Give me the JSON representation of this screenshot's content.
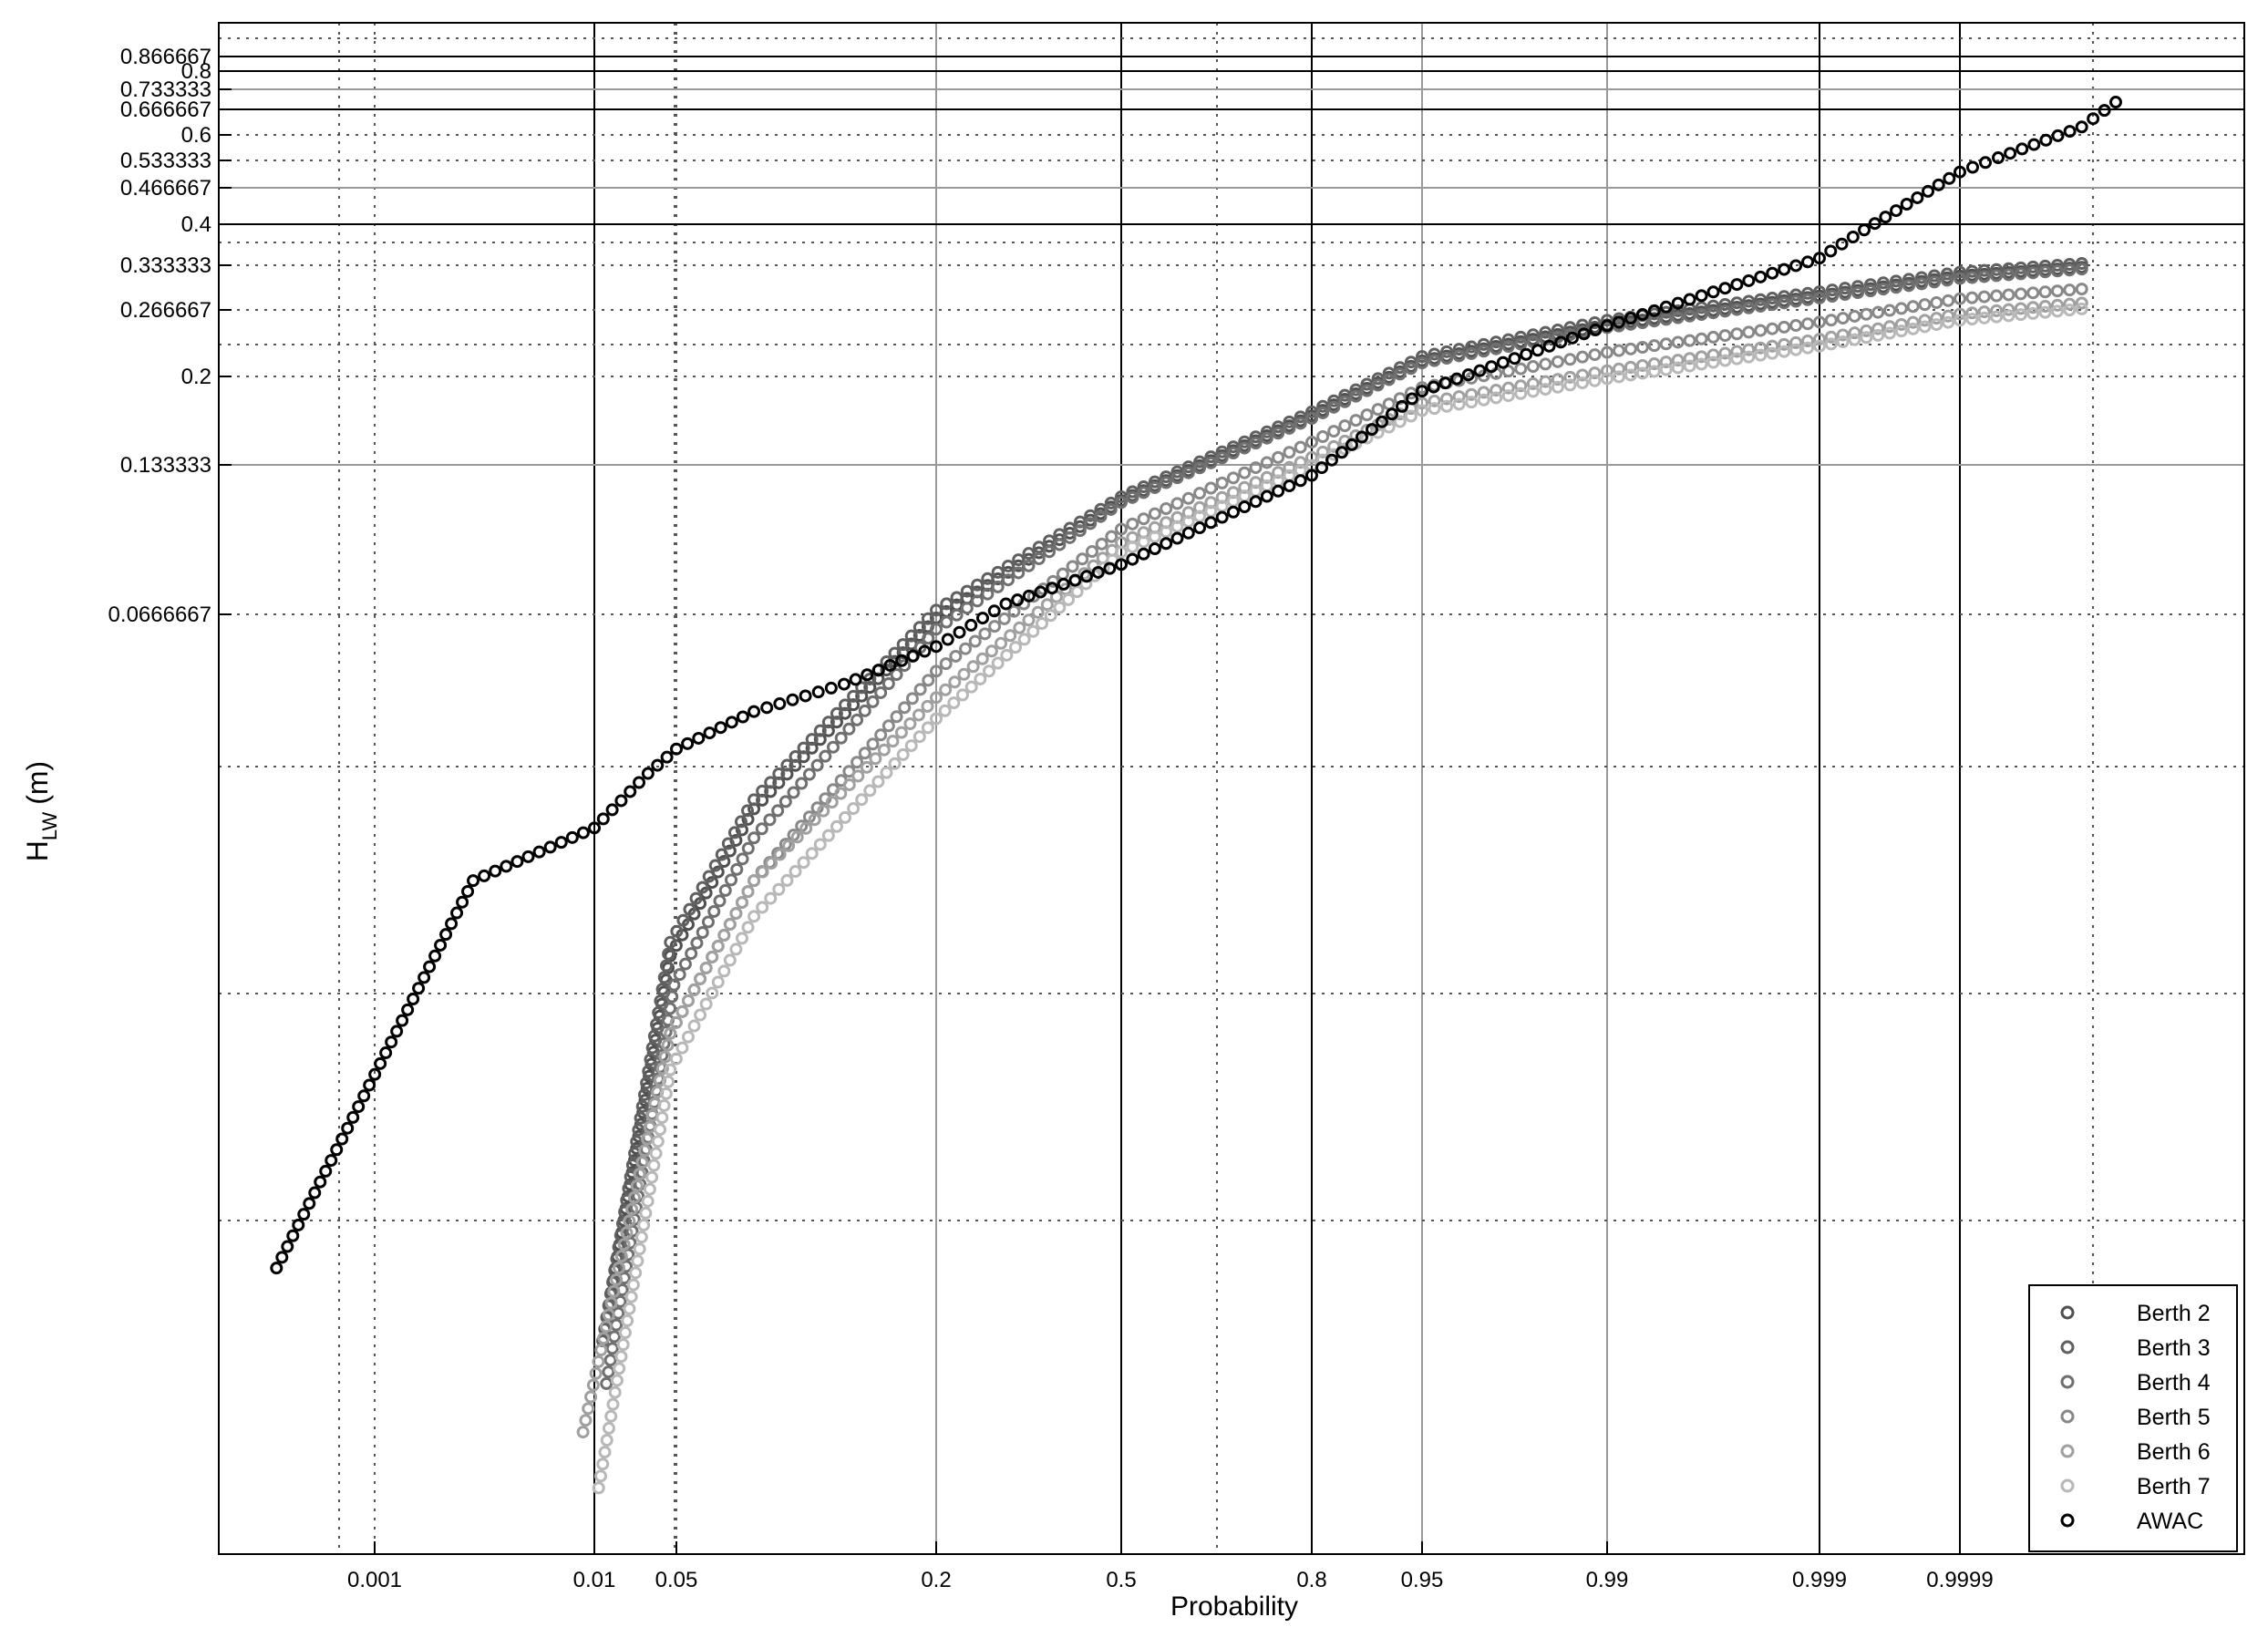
{
  "chart_data": {
    "type": "scatter",
    "xlabel": "Probability",
    "ylabel_main": "H",
    "ylabel_sub": "LW",
    "ylabel_unit": "(m)",
    "x_scale": "normal-probability",
    "x_ticks": [
      "0.001",
      "0.01",
      "0.05",
      "0.2",
      "0.5",
      "0.8",
      "0.95",
      "0.99",
      "0.999",
      "0.9999"
    ],
    "y_ticks": [
      "0.866667",
      "0.8",
      "0.733333",
      "0.666667",
      "0.6",
      "0.533333",
      "0.466667",
      "0.4",
      "0.333333",
      "0.266667",
      "0.2",
      "0.133333",
      "0.0666667"
    ],
    "grid": true,
    "legend_position": "bottom-right",
    "series": [
      {
        "name": "Berth 2",
        "color": "#505050",
        "points": [
          [
            0.012,
            0.009
          ],
          [
            0.045,
            0.026
          ],
          [
            0.08,
            0.039
          ],
          [
            0.2,
            0.066
          ],
          [
            0.5,
            0.113
          ],
          [
            0.8,
            0.167
          ],
          [
            0.95,
            0.214
          ],
          [
            0.99,
            0.25
          ],
          [
            0.999,
            0.286
          ],
          [
            0.9999,
            0.316
          ],
          [
            0.99999,
            0.33
          ]
        ]
      },
      {
        "name": "Berth 3",
        "color": "#606060",
        "points": [
          [
            0.012,
            0.009
          ],
          [
            0.045,
            0.027
          ],
          [
            0.08,
            0.04
          ],
          [
            0.2,
            0.068
          ],
          [
            0.5,
            0.115
          ],
          [
            0.8,
            0.17
          ],
          [
            0.95,
            0.218
          ],
          [
            0.99,
            0.255
          ],
          [
            0.999,
            0.292
          ],
          [
            0.9999,
            0.322
          ],
          [
            0.99999,
            0.336
          ]
        ]
      },
      {
        "name": "Berth 4",
        "color": "#707070",
        "points": [
          [
            0.013,
            0.008
          ],
          [
            0.048,
            0.024
          ],
          [
            0.08,
            0.036
          ],
          [
            0.2,
            0.064
          ],
          [
            0.5,
            0.112
          ],
          [
            0.8,
            0.165
          ],
          [
            0.95,
            0.212
          ],
          [
            0.99,
            0.247
          ],
          [
            0.999,
            0.283
          ],
          [
            0.9999,
            0.312
          ],
          [
            0.99999,
            0.327
          ]
        ]
      },
      {
        "name": "Berth 5",
        "color": "#888888",
        "points": [
          [
            0.045,
            0.021
          ],
          [
            0.08,
            0.032
          ],
          [
            0.2,
            0.057
          ],
          [
            0.5,
            0.099
          ],
          [
            0.8,
            0.148
          ],
          [
            0.95,
            0.19
          ],
          [
            0.99,
            0.222
          ],
          [
            0.999,
            0.253
          ],
          [
            0.9999,
            0.282
          ],
          [
            0.99999,
            0.296
          ]
        ]
      },
      {
        "name": "Berth 6",
        "color": "#a0a0a0",
        "points": [
          [
            0.009,
            0.007
          ],
          [
            0.045,
            0.021
          ],
          [
            0.08,
            0.032
          ],
          [
            0.2,
            0.053
          ],
          [
            0.5,
            0.093
          ],
          [
            0.8,
            0.138
          ],
          [
            0.95,
            0.177
          ],
          [
            0.99,
            0.205
          ],
          [
            0.999,
            0.235
          ],
          [
            0.9999,
            0.262
          ],
          [
            0.99999,
            0.276
          ]
        ]
      },
      {
        "name": "Berth 7",
        "color": "#b8b8b8",
        "points": [
          [
            0.011,
            0.006
          ],
          [
            0.045,
            0.019
          ],
          [
            0.08,
            0.029
          ],
          [
            0.2,
            0.05
          ],
          [
            0.5,
            0.089
          ],
          [
            0.8,
            0.133
          ],
          [
            0.95,
            0.171
          ],
          [
            0.99,
            0.198
          ],
          [
            0.999,
            0.228
          ],
          [
            0.9999,
            0.255
          ],
          [
            0.99999,
            0.268
          ]
        ]
      },
      {
        "name": "AWAC",
        "color": "#000000",
        "points": [
          [
            0.0003,
            0.011
          ],
          [
            0.003,
            0.032
          ],
          [
            0.01,
            0.037
          ],
          [
            0.03,
            0.043
          ],
          [
            0.05,
            0.046
          ],
          [
            0.08,
            0.051
          ],
          [
            0.13,
            0.055
          ],
          [
            0.2,
            0.061
          ],
          [
            0.3,
            0.07
          ],
          [
            0.5,
            0.084
          ],
          [
            0.8,
            0.127
          ],
          [
            0.95,
            0.187
          ],
          [
            0.99,
            0.249
          ],
          [
            0.999,
            0.344
          ],
          [
            0.9995,
            0.39
          ],
          [
            0.9999,
            0.504
          ],
          [
            0.99995,
            0.54
          ],
          [
            0.99999,
            0.62
          ],
          [
            0.999995,
            0.69
          ]
        ]
      }
    ]
  }
}
